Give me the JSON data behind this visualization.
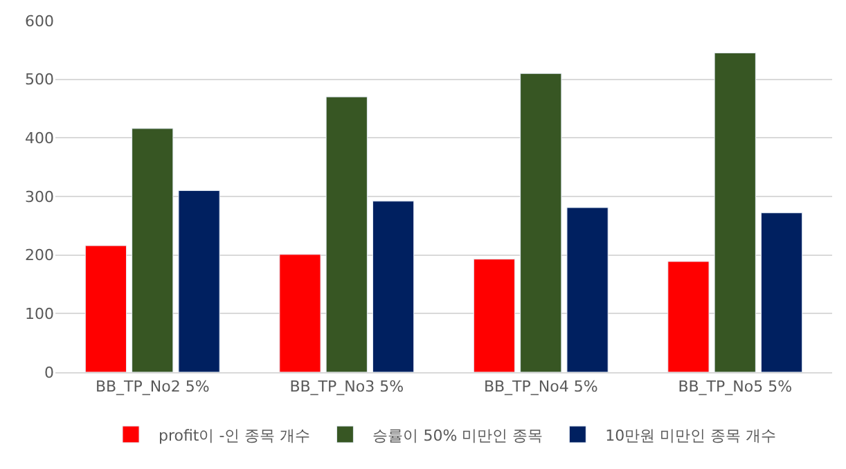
{
  "chart_data": {
    "type": "bar",
    "categories": [
      "BB_TP_No2 5%",
      "BB_TP_No3 5%",
      "BB_TP_No4 5%",
      "BB_TP_No5 5%"
    ],
    "series": [
      {
        "name": "profit이 -인 종목 개수",
        "color": "#ff0000",
        "values": [
          216,
          201,
          193,
          189
        ]
      },
      {
        "name": "승률이 50% 미만인 종목",
        "color": "#375623",
        "values": [
          416,
          470,
          510,
          545
        ]
      },
      {
        "name": "10만원 미만인 종목 개수",
        "color": "#002060",
        "values": [
          310,
          292,
          281,
          272
        ]
      }
    ],
    "ylim": [
      0,
      600
    ],
    "yticks": [
      0,
      100,
      200,
      300,
      400,
      500,
      600
    ],
    "grid": "y",
    "legend": "bottom"
  }
}
